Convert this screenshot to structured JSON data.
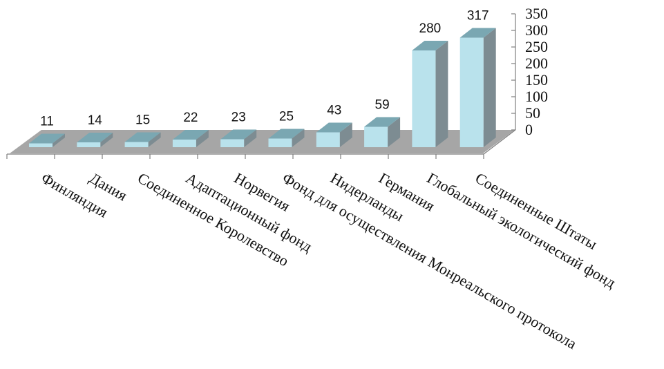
{
  "chart_data": {
    "type": "bar",
    "title": "",
    "xlabel": "",
    "ylabel": "",
    "ylim": [
      0,
      350
    ],
    "yticks": [
      0,
      50,
      100,
      150,
      200,
      250,
      300,
      350
    ],
    "grid": false,
    "legend": "none",
    "style": "3d",
    "categories": [
      "Финляндия",
      "Дания",
      "Соединенное Королевство",
      "Адаптационный фонд",
      "Норвегия",
      "Фонд для осуществления Монреальского протокола",
      "Нидерланды",
      "Германия",
      "Глобальный экологический фонд",
      "Соединенные Штаты"
    ],
    "values": [
      11,
      14,
      15,
      22,
      23,
      25,
      43,
      59,
      280,
      317
    ],
    "colors": {
      "bar_front": "#b9e2ec",
      "bar_top": "#7aa7b2",
      "bar_side": "#7d8c92",
      "floor": "#a6a6a6",
      "axis": "#7f7f7f"
    }
  }
}
